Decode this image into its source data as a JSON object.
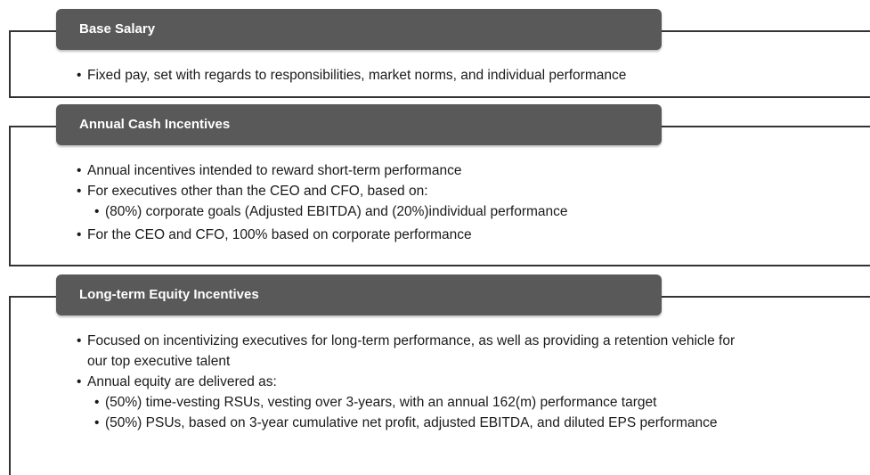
{
  "sections": [
    {
      "title": "Base Salary",
      "items": [
        {
          "text": "Fixed pay, set with regards to responsibilities, market norms, and individual performance"
        }
      ]
    },
    {
      "title": "Annual Cash Incentives",
      "items": [
        {
          "text": "Annual incentives intended to reward short-term performance"
        },
        {
          "text": "For executives other than the CEO and CFO, based on:",
          "sub": [
            "(80%) corporate goals (Adjusted EBITDA) and (20%)individual performance"
          ]
        },
        {
          "text": "For the CEO and CFO, 100% based on corporate performance"
        }
      ]
    },
    {
      "title": "Long-term Equity Incentives",
      "items": [
        {
          "text": "Focused on incentivizing executives for long-term performance, as well as providing a retention vehicle for our top executive talent"
        },
        {
          "text": "Annual equity are delivered as:",
          "sub": [
            "(50%) time-vesting RSUs, vesting over 3-years, with an annual 162(m) performance target",
            "(50%) PSUs, based on 3-year cumulative net profit, adjusted EBITDA, and diluted EPS performance"
          ]
        }
      ]
    }
  ]
}
